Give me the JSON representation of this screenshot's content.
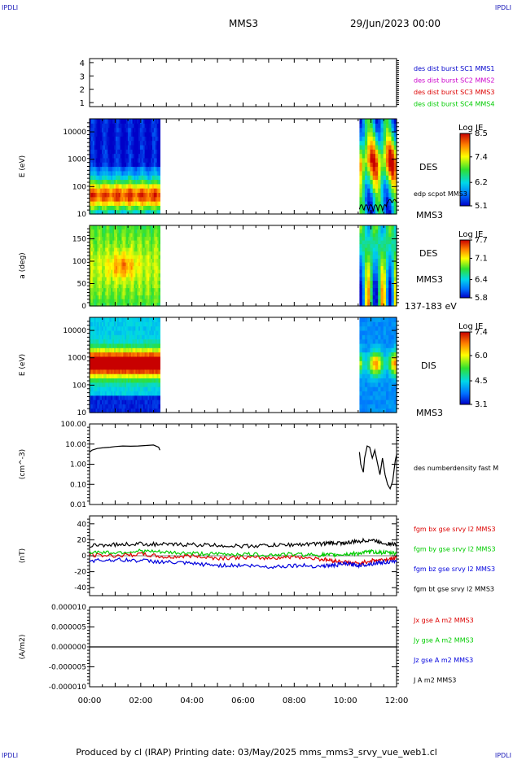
{
  "header": {
    "corner_left_top": "IPDLI",
    "corner_right_top": "IPDLI",
    "spacecraft": "MMS3",
    "date": "29/Jun/2023 00:00",
    "corner_left_bottom": "IPDLI",
    "corner_right_bottom": "IPDLI"
  },
  "footer": {
    "text": "Produced by cl (IRAP)   Printing date: 03/May/2025   mms_mms3_srvy_vue_web1.cl"
  },
  "colors": {
    "sc1": "#0000cc",
    "sc2": "#cc00cc",
    "sc3": "#dd0000",
    "sc4": "#00cc00",
    "bx": "#dd0000",
    "by": "#00cc00",
    "bz": "#0000dd",
    "bt": "#000000"
  },
  "chart_data": [
    {
      "type": "line",
      "panel": "spacecraft-availability",
      "yticks": [
        "1",
        "2",
        "3",
        "4"
      ],
      "ylim": [
        0.7,
        4.3
      ],
      "legend": [
        {
          "label": "des dist burst SC1 MMS1",
          "color": "#0000cc"
        },
        {
          "label": "des dist burst SC2 MMS2",
          "color": "#cc00cc"
        },
        {
          "label": "des dist burst SC3 MMS3",
          "color": "#dd0000"
        },
        {
          "label": "des dist burst SC4 MMS4",
          "color": "#00cc00"
        }
      ]
    },
    {
      "type": "heatmap",
      "panel": "des-energy-spectrogram",
      "ylabel": "E (eV)",
      "yscale": "log",
      "ylim": [
        10,
        30000
      ],
      "yticks": [
        "10",
        "100",
        "1000",
        "10000"
      ],
      "data_coverage_hours": [
        [
          0.0,
          2.75
        ],
        [
          10.55,
          12.0
        ]
      ],
      "colorbar": {
        "title": "Log JE",
        "ticks": [
          "5.1",
          "6.2",
          "7.4",
          "8.5"
        ],
        "range": [
          5.1,
          8.5
        ]
      },
      "labels": [
        "DES",
        "edp scpot MMS3",
        "MMS3"
      ],
      "overlay_line": "edp scpot MMS3"
    },
    {
      "type": "heatmap",
      "panel": "des-pitch-angle",
      "ylabel": "a (deg)",
      "ylim": [
        0,
        180
      ],
      "yticks": [
        "0",
        "50",
        "100",
        "150"
      ],
      "data_coverage_hours": [
        [
          0.0,
          2.75
        ],
        [
          10.55,
          12.0
        ]
      ],
      "colorbar": {
        "title": "Log JE",
        "ticks": [
          "5.8",
          "6.4",
          "7.1",
          "7.7"
        ],
        "range": [
          5.8,
          7.7
        ]
      },
      "labels": [
        "DES",
        "MMS3",
        "137-183 eV"
      ]
    },
    {
      "type": "heatmap",
      "panel": "dis-energy-spectrogram",
      "ylabel": "E (eV)",
      "yscale": "log",
      "ylim": [
        10,
        30000
      ],
      "yticks": [
        "10",
        "100",
        "1000",
        "10000"
      ],
      "data_coverage_hours": [
        [
          0.0,
          2.75
        ],
        [
          10.55,
          12.0
        ]
      ],
      "colorbar": {
        "title": "Log JE",
        "ticks": [
          "3.1",
          "4.5",
          "6.0",
          "7.4"
        ],
        "range": [
          3.1,
          7.4
        ]
      },
      "labels": [
        "DIS",
        "MMS3"
      ]
    },
    {
      "type": "line",
      "panel": "density",
      "ylabel": "(cm^-3)",
      "yscale": "log",
      "ylim": [
        0.01,
        100
      ],
      "yticks": [
        "0.01",
        "0.10",
        "1.00",
        "10.00",
        "100.00"
      ],
      "legend": [
        {
          "label": "des numberdensity fast M",
          "color": "#000000"
        }
      ],
      "series": [
        {
          "name": "des numberdensity fast M",
          "x": [
            0.0,
            0.1,
            0.3,
            0.5,
            0.8,
            1.0,
            1.3,
            1.6,
            1.9,
            2.2,
            2.5,
            2.7,
            2.75
          ],
          "y": [
            4.0,
            5.0,
            6.0,
            6.5,
            7.0,
            7.5,
            8.0,
            7.8,
            8.0,
            8.5,
            9.0,
            7.0,
            5.0
          ]
        },
        {
          "name": "des numberdensity fast M (late)",
          "x": [
            10.55,
            10.6,
            10.7,
            10.75,
            10.85,
            10.95,
            11.05,
            11.15,
            11.25,
            11.35,
            11.45,
            11.55,
            11.65,
            11.75,
            11.85,
            11.95,
            12.0
          ],
          "y": [
            4.0,
            1.0,
            0.4,
            2.0,
            8.0,
            7.0,
            2.0,
            5.0,
            1.2,
            0.3,
            2.0,
            0.3,
            0.1,
            0.06,
            0.15,
            1.5,
            3.0
          ]
        }
      ]
    },
    {
      "type": "line",
      "panel": "magnetic-field",
      "ylabel": "(nT)",
      "ylim": [
        -50,
        50
      ],
      "yticks": [
        "-40",
        "-20",
        "0",
        "20",
        "40"
      ],
      "legend": [
        {
          "label": "fgm bx gse srvy l2 MMS3",
          "color": "#dd0000"
        },
        {
          "label": "fgm by gse srvy l2 MMS3",
          "color": "#00cc00"
        },
        {
          "label": "fgm bz gse srvy l2 MMS3",
          "color": "#0000dd"
        },
        {
          "label": "fgm bt gse srvy l2 MMS3",
          "color": "#000000"
        }
      ],
      "series": [
        {
          "name": "fgm bx gse srvy l2 MMS3",
          "x": [
            0,
            1,
            2,
            3,
            4,
            5,
            6,
            7,
            8,
            9,
            9.5,
            10,
            10.5,
            11,
            11.5,
            12
          ],
          "y": [
            1,
            0,
            2,
            -2,
            0,
            -3,
            -2,
            -3,
            -1,
            -4,
            -6,
            -8,
            -10,
            -6,
            -5,
            -3
          ]
        },
        {
          "name": "fgm by gse srvy l2 MMS3",
          "x": [
            0,
            1,
            2,
            3,
            4,
            5,
            6,
            7,
            8,
            9,
            9.5,
            10,
            10.5,
            11,
            11.5,
            12
          ],
          "y": [
            5,
            4,
            6,
            4,
            3,
            2,
            2,
            1,
            2,
            1,
            1,
            2,
            3,
            5,
            4,
            3
          ]
        },
        {
          "name": "fgm bz gse srvy l2 MMS3",
          "x": [
            0,
            1,
            2,
            3,
            4,
            5,
            6,
            7,
            8,
            9,
            9.5,
            10,
            10.5,
            11,
            11.5,
            12
          ],
          "y": [
            -6,
            -5,
            -6,
            -8,
            -10,
            -12,
            -12,
            -14,
            -12,
            -13,
            -12,
            -10,
            -12,
            -10,
            -8,
            -8
          ]
        },
        {
          "name": "fgm bt gse srvy l2 MMS3",
          "x": [
            0,
            1,
            2,
            3,
            4,
            5,
            6,
            7,
            8,
            9,
            9.5,
            10,
            10.5,
            11,
            11.5,
            12
          ],
          "y": [
            13,
            14,
            15,
            14,
            14,
            13,
            12,
            13,
            14,
            15,
            16,
            16,
            18,
            20,
            16,
            14
          ]
        }
      ]
    },
    {
      "type": "line",
      "panel": "current-density",
      "ylabel": "(A/m2)",
      "ylim": [
        -0.0001,
        0.0001
      ],
      "yticks": [
        "-0.000010",
        "-0.000005",
        "0.000000",
        "0.000005",
        "0.000010"
      ],
      "legend": [
        {
          "label": "Jx gse A m2 MMS3",
          "color": "#dd0000"
        },
        {
          "label": "Jy gse A m2 MMS3",
          "color": "#00cc00"
        },
        {
          "label": "Jz gse A m2 MMS3",
          "color": "#0000dd"
        },
        {
          "label": "J A m2 MMS3",
          "color": "#000000"
        }
      ],
      "series": [
        {
          "name": "J A m2 MMS3",
          "x": [
            0,
            12
          ],
          "y": [
            0,
            0
          ]
        }
      ]
    }
  ],
  "x_axis": {
    "xlim": [
      0,
      12
    ],
    "ticks": [
      "00:00",
      "02:00",
      "04:00",
      "06:00",
      "08:00",
      "10:00",
      "12:00"
    ]
  }
}
